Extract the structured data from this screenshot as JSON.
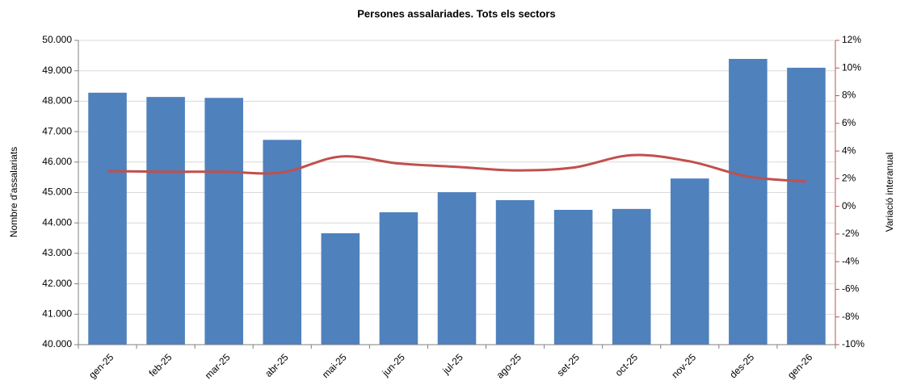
{
  "chart_data": {
    "type": "bar",
    "title": "Persones assalariades. Tots els sectors",
    "ylabel": "Nombre d'assalariats",
    "y2label": "Variació interanual",
    "categories": [
      "gen-25",
      "feb-25",
      "mar-25",
      "abr-25",
      "mai-25",
      "jun-25",
      "jul-25",
      "ago-25",
      "set-25",
      "oct-25",
      "nov-25",
      "des-25",
      "gen-26"
    ],
    "series": [
      {
        "name": "Nombre d'assalariats",
        "type": "bar",
        "color": "#4f81bd",
        "values": [
          48280,
          48140,
          48110,
          46730,
          43660,
          44350,
          45010,
          44750,
          44430,
          44460,
          45460,
          49390,
          49100
        ]
      },
      {
        "name": "Variació interanual",
        "type": "line",
        "axis": "y2",
        "color": "#c0504d",
        "values": [
          2.55,
          2.5,
          2.5,
          2.45,
          3.6,
          3.1,
          2.85,
          2.6,
          2.8,
          3.7,
          3.25,
          2.15,
          1.8
        ]
      }
    ],
    "ylim": [
      40000,
      50000
    ],
    "yticks": [
      {
        "value": 40000,
        "label": "40.000"
      },
      {
        "value": 41000,
        "label": "41.000"
      },
      {
        "value": 42000,
        "label": "42.000"
      },
      {
        "value": 43000,
        "label": "43.000"
      },
      {
        "value": 44000,
        "label": "44.000"
      },
      {
        "value": 45000,
        "label": "45.000"
      },
      {
        "value": 46000,
        "label": "46.000"
      },
      {
        "value": 47000,
        "label": "47.000"
      },
      {
        "value": 48000,
        "label": "48.000"
      },
      {
        "value": 49000,
        "label": "49.000"
      },
      {
        "value": 50000,
        "label": "50.000"
      }
    ],
    "y2lim": [
      -10,
      12
    ],
    "y2ticks": [
      {
        "value": -10,
        "label": "-10%"
      },
      {
        "value": -8,
        "label": "-8%"
      },
      {
        "value": -6,
        "label": "-6%"
      },
      {
        "value": -4,
        "label": "-4%"
      },
      {
        "value": -2,
        "label": "-2%"
      },
      {
        "value": 0,
        "label": "0%"
      },
      {
        "value": 2,
        "label": "2%"
      },
      {
        "value": 4,
        "label": "4%"
      },
      {
        "value": 6,
        "label": "6%"
      },
      {
        "value": 8,
        "label": "8%"
      },
      {
        "value": 10,
        "label": "10%"
      },
      {
        "value": 12,
        "label": "12%"
      }
    ],
    "y2color": "#c0504d",
    "grid": true
  }
}
